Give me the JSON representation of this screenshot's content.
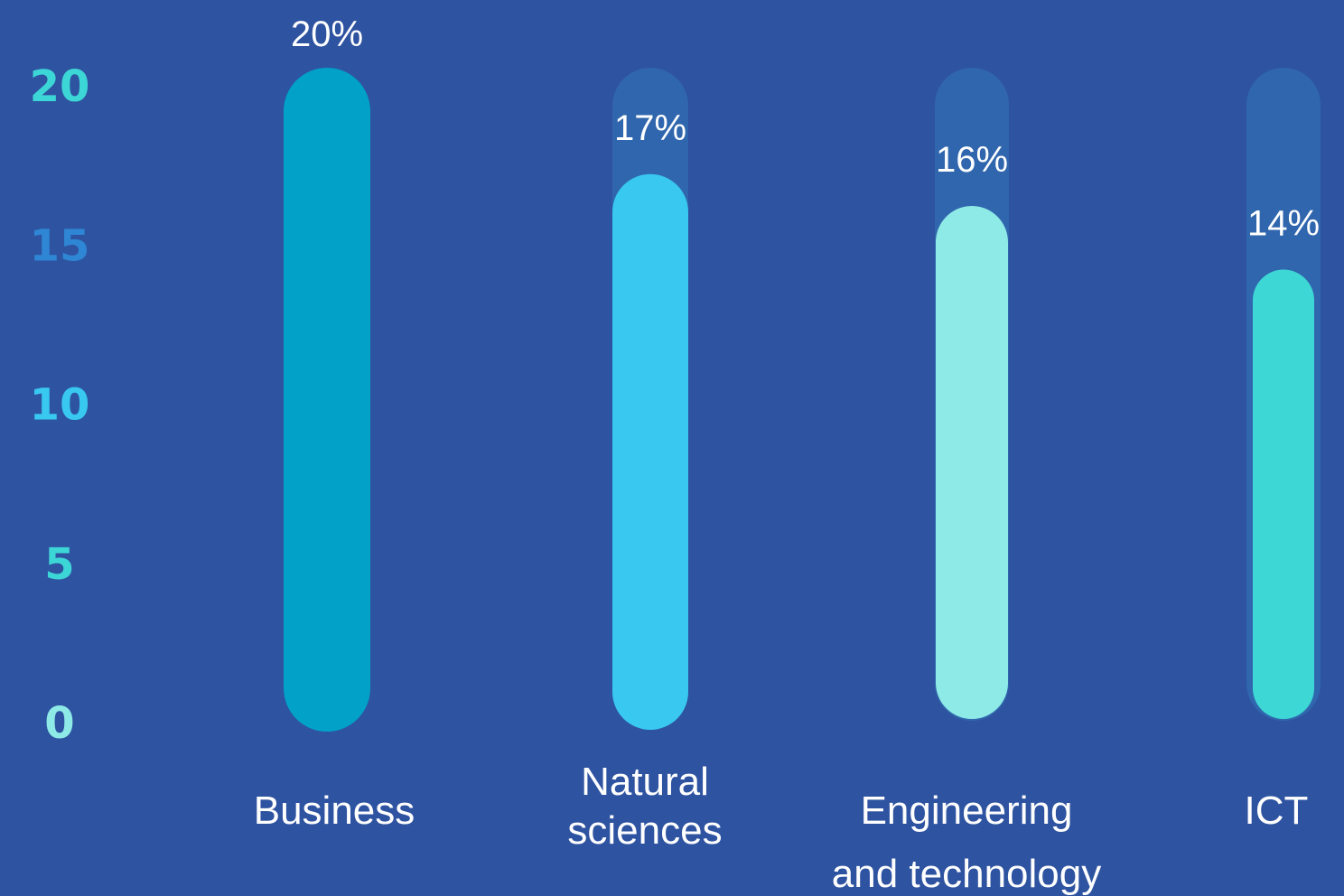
{
  "colors": {
    "background": "#2e53a0",
    "track": "#3066ad"
  },
  "chart_data": {
    "type": "bar",
    "orientation": "vertical",
    "ylim": [
      0,
      20
    ],
    "yticks": [
      {
        "label": "20",
        "value": 20,
        "color": "#3dd6d6"
      },
      {
        "label": "15",
        "value": 15,
        "color": "#2e86d4"
      },
      {
        "label": "10",
        "value": 10,
        "color": "#38c8f0"
      },
      {
        "label": "5",
        "value": 5,
        "color": "#3dd6d6"
      },
      {
        "label": "0",
        "value": 0,
        "color": "#8eeae6"
      }
    ],
    "categories": [
      {
        "lines": [
          "Business"
        ],
        "value": 20,
        "label": "20%",
        "color": "#01a1c8"
      },
      {
        "lines": [
          "Natural",
          "sciences"
        ],
        "value": 17,
        "label": "17%",
        "color": "#38c8f0"
      },
      {
        "lines": [
          "Engineering",
          "and technology"
        ],
        "value": 16,
        "label": "16%",
        "color": "#8eeae6"
      },
      {
        "lines": [
          "ICT"
        ],
        "value": 14,
        "label": "14%",
        "color": "#3dd8d6"
      }
    ],
    "grid": false,
    "legend": "none"
  }
}
